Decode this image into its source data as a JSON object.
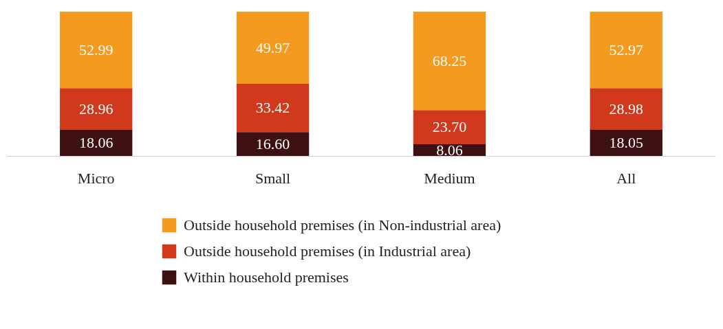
{
  "chart_data": {
    "type": "bar",
    "stacked": true,
    "legend": "bottom",
    "categories": [
      "Micro",
      "Small",
      "Medium",
      "All"
    ],
    "series": [
      {
        "name": "Within household premises",
        "color": "#3d1111",
        "values": [
          18.06,
          16.6,
          8.06,
          18.05
        ],
        "value_labels": [
          "18.06",
          "16.60",
          "8.06",
          "18.05"
        ]
      },
      {
        "name": "Outside household premises (in Industrial area)",
        "color": "#d0391b",
        "values": [
          28.96,
          33.42,
          23.7,
          28.98
        ],
        "value_labels": [
          "28.96",
          "33.42",
          "23.70",
          "28.98"
        ]
      },
      {
        "name": "Outside household premises (in Non-industrial area)",
        "color": "#f49a1f",
        "values": [
          52.99,
          49.97,
          68.25,
          52.97
        ],
        "value_labels": [
          "52.99",
          "49.97",
          "68.25",
          "52.97"
        ]
      }
    ]
  }
}
